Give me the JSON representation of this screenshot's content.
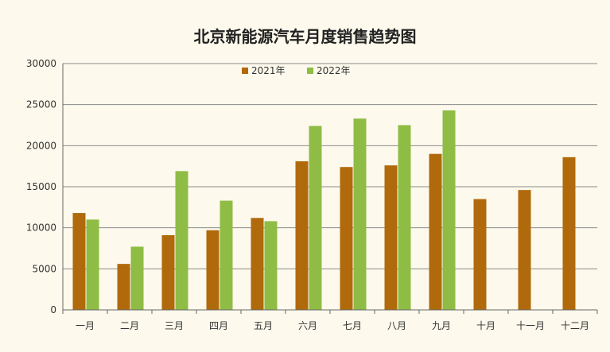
{
  "chart_data": {
    "type": "bar",
    "title": "北京新能源汽车月度销售趋势图",
    "categories": [
      "一月",
      "二月",
      "三月",
      "四月",
      "五月",
      "六月",
      "七月",
      "八月",
      "九月",
      "十月",
      "十一月",
      "十二月"
    ],
    "series": [
      {
        "name": "2021年",
        "color": "#b06a0c",
        "values": [
          11800,
          5600,
          9100,
          9700,
          11200,
          18100,
          17400,
          17600,
          19000,
          13500,
          14600,
          18600
        ]
      },
      {
        "name": "2022年",
        "color": "#8fbc45",
        "values": [
          11000,
          7700,
          16900,
          13300,
          10800,
          22400,
          23300,
          22500,
          24300,
          null,
          null,
          null
        ]
      }
    ],
    "y_ticks": [
      "0",
      "5000",
      "10000",
      "15000",
      "20000",
      "25000",
      "30000"
    ],
    "ylim": [
      0,
      30000
    ],
    "grid": true,
    "legend_position": "top-center"
  }
}
